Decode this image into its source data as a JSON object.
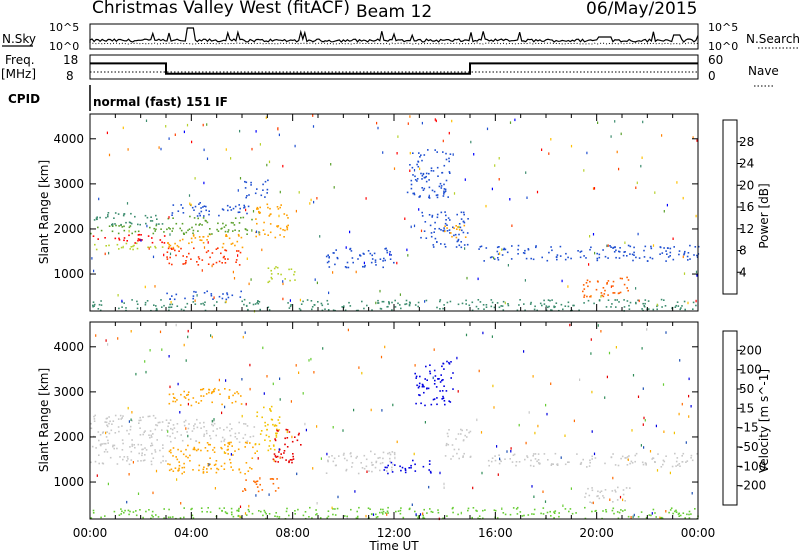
{
  "header": {
    "station": "Christmas Valley West (fitACF)",
    "beam": "Beam 12",
    "date": "06/May/2015"
  },
  "labels": {
    "nsky": "N.Sky",
    "nsearch": "N.Search",
    "freq_line1": "Freq.",
    "freq_line2": "[MHz]",
    "nave": "Nave",
    "cpid": "CPID",
    "cpid_value": "normal (fast) 151 IF"
  },
  "noise_panel": {
    "left_ticks": [
      "10^5",
      "10^0"
    ],
    "right_ticks": [
      "10^5",
      "10^0"
    ]
  },
  "freq_panel": {
    "left_ticks": [
      "18",
      "8"
    ],
    "right_ticks": [
      "60",
      "0"
    ],
    "segments": [
      {
        "start_hour": 0,
        "end_hour": 3.0,
        "freq_mhz": 14.5
      },
      {
        "start_hour": 3.0,
        "end_hour": 15.0,
        "freq_mhz": 10.2
      },
      {
        "start_hour": 15.0,
        "end_hour": 24.0,
        "freq_mhz": 14.5
      }
    ],
    "nave_level": 10.9
  },
  "colors": {
    "power_scale": [
      "#0000ff",
      "#1f4fd0",
      "#3c8c6e",
      "#5aa02c",
      "#b6d12b",
      "#ffc000",
      "#ff8000",
      "#ff4000",
      "#ff0000"
    ],
    "velocity_scale": [
      "#e60000",
      "#ff6a00",
      "#ffa500",
      "#f2c200",
      "#c8c8c8",
      "#66cc33",
      "#2e8b57",
      "#1c4fb3",
      "#0000e0"
    ]
  },
  "chart_data": [
    {
      "type": "heatmap",
      "title": "Power",
      "ylabel": "Slant Range [km]",
      "y_ticks": [
        1000,
        2000,
        3000,
        4000
      ],
      "ylim": [
        180,
        4550
      ],
      "xlim": [
        0,
        24
      ],
      "colorbar": {
        "label": "Power [dB]",
        "ticks": [
          "4",
          "8",
          "12",
          "16",
          "20",
          "24",
          "28"
        ],
        "range": [
          0,
          30
        ]
      },
      "bands": [
        {
          "t0": 0.0,
          "t1": 3.0,
          "r0": 1700,
          "r1": 1900,
          "color": "#ff0000"
        },
        {
          "t0": 0.0,
          "t1": 3.0,
          "r0": 1550,
          "r1": 1700,
          "color": "#b6d12b"
        },
        {
          "t0": 0.0,
          "t1": 3.0,
          "r0": 1900,
          "r1": 2100,
          "color": "#5aa02c"
        },
        {
          "t0": 0.0,
          "t1": 3.0,
          "r0": 2100,
          "r1": 2400,
          "color": "#3c8c6e"
        },
        {
          "t0": 3.0,
          "t1": 6.0,
          "r0": 1200,
          "r1": 1600,
          "color": "#ff3000"
        },
        {
          "t0": 3.0,
          "t1": 6.0,
          "r0": 1600,
          "r1": 1900,
          "color": "#ffa000"
        },
        {
          "t0": 3.0,
          "t1": 6.5,
          "r0": 1900,
          "r1": 2300,
          "color": "#5aa02c"
        },
        {
          "t0": 3.2,
          "t1": 6.5,
          "r0": 2300,
          "r1": 2600,
          "color": "#1f4fd0"
        },
        {
          "t0": 6.5,
          "t1": 7.8,
          "r0": 1800,
          "r1": 2600,
          "color": "#ffa000"
        },
        {
          "t0": 7.0,
          "t1": 8.1,
          "r0": 800,
          "r1": 1200,
          "color": "#b6d12b"
        },
        {
          "t0": 9.3,
          "t1": 12.0,
          "r0": 1150,
          "r1": 1600,
          "color": "#1f4fd0"
        },
        {
          "t0": 13.0,
          "t1": 15.0,
          "r0": 1600,
          "r1": 2400,
          "color": "#1f4fd0"
        },
        {
          "t0": 13.8,
          "t1": 14.8,
          "r0": 1800,
          "r1": 2100,
          "color": "#ffa000"
        },
        {
          "t0": 15.3,
          "t1": 24.0,
          "r0": 1300,
          "r1": 1650,
          "color": "#1f4fd0"
        },
        {
          "t0": 19.4,
          "t1": 21.3,
          "r0": 500,
          "r1": 950,
          "color": "#ff6000"
        },
        {
          "t0": 3.0,
          "t1": 6.0,
          "r0": 450,
          "r1": 650,
          "color": "#1f4fd0"
        },
        {
          "t0": 6.0,
          "t1": 7.0,
          "r0": 2700,
          "r1": 3100,
          "color": "#1f4fd0"
        },
        {
          "t0": 12.5,
          "t1": 14.2,
          "r0": 2700,
          "r1": 3800,
          "color": "#1f4fd0"
        },
        {
          "t0": 0.0,
          "t1": 24.0,
          "r0": 200,
          "r1": 450,
          "color": "#3c8c6e"
        }
      ]
    },
    {
      "type": "heatmap",
      "title": "Velocity",
      "ylabel": "Slant Range [km]",
      "xlabel": "Time UT",
      "x_ticks": [
        "00:00",
        "04:00",
        "08:00",
        "12:00",
        "16:00",
        "20:00",
        "00:00"
      ],
      "y_ticks": [
        1000,
        2000,
        3000,
        4000
      ],
      "ylim": [
        180,
        4550
      ],
      "xlim": [
        0,
        24
      ],
      "colorbar": {
        "label": "Velocity [m s^-1]",
        "ticks": [
          "-200",
          "-100",
          "-50",
          "-15",
          "15",
          "50",
          "100",
          "200"
        ],
        "range": [
          -250,
          250
        ]
      },
      "bands": [
        {
          "t0": 0.0,
          "t1": 3.0,
          "r0": 1400,
          "r1": 2500,
          "color": "#c8c8c8"
        },
        {
          "t0": 3.0,
          "t1": 6.5,
          "r0": 1200,
          "r1": 1900,
          "color": "#ffa500"
        },
        {
          "t0": 3.0,
          "t1": 6.5,
          "r0": 1900,
          "r1": 2400,
          "color": "#c8c8c8"
        },
        {
          "t0": 3.0,
          "t1": 6.0,
          "r0": 2700,
          "r1": 3100,
          "color": "#ffa500"
        },
        {
          "t0": 6.5,
          "t1": 7.5,
          "r0": 1700,
          "r1": 2700,
          "color": "#f2c200"
        },
        {
          "t0": 7.2,
          "t1": 8.3,
          "r0": 1400,
          "r1": 2200,
          "color": "#e60000"
        },
        {
          "t0": 6.0,
          "t1": 7.5,
          "r0": 800,
          "r1": 1100,
          "color": "#ff6a00"
        },
        {
          "t0": 9.3,
          "t1": 12.0,
          "r0": 1200,
          "r1": 1700,
          "color": "#c8c8c8"
        },
        {
          "t0": 11.5,
          "t1": 13.5,
          "r0": 1200,
          "r1": 1500,
          "color": "#0000e0"
        },
        {
          "t0": 12.8,
          "t1": 14.3,
          "r0": 2700,
          "r1": 3700,
          "color": "#0000e0"
        },
        {
          "t0": 14.0,
          "t1": 15.0,
          "r0": 1500,
          "r1": 2200,
          "color": "#c8c8c8"
        },
        {
          "t0": 15.5,
          "t1": 24.0,
          "r0": 1350,
          "r1": 1650,
          "color": "#c8c8c8"
        },
        {
          "t0": 19.5,
          "t1": 21.3,
          "r0": 550,
          "r1": 900,
          "color": "#c8c8c8"
        },
        {
          "t0": 0.0,
          "t1": 24.0,
          "r0": 200,
          "r1": 450,
          "color": "#66cc33"
        }
      ]
    }
  ]
}
